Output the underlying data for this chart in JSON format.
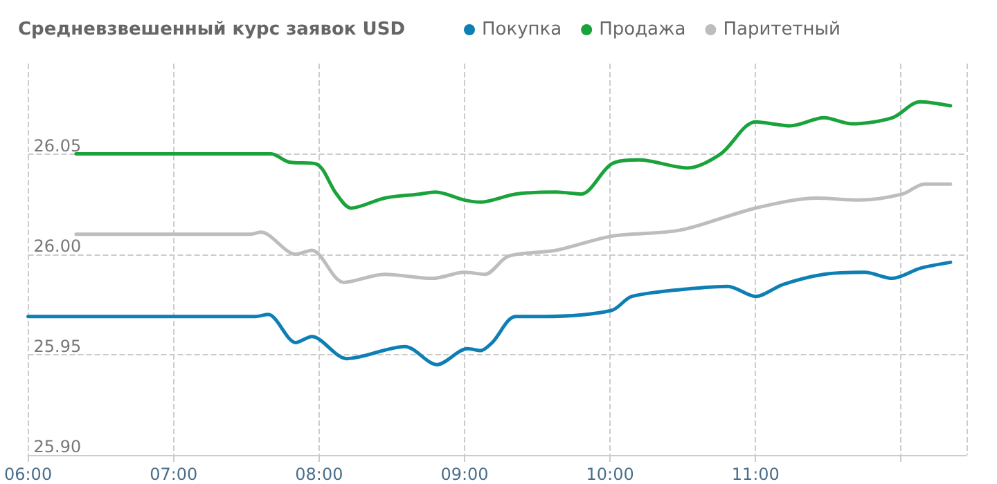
{
  "chart_data": {
    "type": "line",
    "title": "Средневзвешенный курс заявок USD",
    "legend": "top",
    "grid": true,
    "line_style": "solid",
    "marker": "none",
    "xlim": [
      6,
      12.45
    ],
    "xticks": [
      {
        "value": 6,
        "label": "06:00"
      },
      {
        "value": 7,
        "label": "07:00"
      },
      {
        "value": 8,
        "label": "08:00"
      },
      {
        "value": 9,
        "label": "09:00"
      },
      {
        "value": 10,
        "label": "10:00"
      },
      {
        "value": 11,
        "label": "11:00"
      },
      {
        "value": 12,
        "label": null
      }
    ],
    "ylim": [
      25.9,
      26.095
    ],
    "yticks": [
      {
        "value": 25.9,
        "label": "25.90"
      },
      {
        "value": 25.95,
        "label": "25.95"
      },
      {
        "value": 26,
        "label": "26.00"
      },
      {
        "value": 26.05,
        "label": "26.05"
      }
    ],
    "series": [
      {
        "name": "Покупка",
        "color": "#0e7fb5",
        "x": [
          6.0,
          7.56,
          7.65,
          7.84,
          7.95,
          8.19,
          8.59,
          8.81,
          9.02,
          9.11,
          9.19,
          9.35,
          9.54,
          10.01,
          10.15,
          10.58,
          10.81,
          11.0,
          11.19,
          11.47,
          11.75,
          11.94,
          12.13,
          12.34
        ],
        "values": [
          25.969,
          25.969,
          25.97,
          25.956,
          25.959,
          25.948,
          25.954,
          25.945,
          25.953,
          25.952,
          25.956,
          25.969,
          25.969,
          25.972,
          25.979,
          25.983,
          25.984,
          25.979,
          25.985,
          25.99,
          25.991,
          25.988,
          25.993,
          25.996
        ]
      },
      {
        "name": "Продажа",
        "color": "#1aa33a",
        "x": [
          6.33,
          7.67,
          7.79,
          7.98,
          8.12,
          8.22,
          8.45,
          8.69,
          8.8,
          9.0,
          9.11,
          9.35,
          9.63,
          9.8,
          10.01,
          10.2,
          10.53,
          10.76,
          11.0,
          11.24,
          11.47,
          11.66,
          11.94,
          12.13,
          12.34
        ],
        "values": [
          26.05,
          26.05,
          26.046,
          26.045,
          26.03,
          26.023,
          26.028,
          26.03,
          26.031,
          26.027,
          26.026,
          26.03,
          26.031,
          26.03,
          26.045,
          26.047,
          26.043,
          26.05,
          26.066,
          26.064,
          26.068,
          26.065,
          26.068,
          26.076,
          26.074
        ]
      },
      {
        "name": "Паритетный",
        "color": "#bdbdbd",
        "x": [
          6.33,
          7.53,
          7.6,
          7.84,
          7.95,
          8.17,
          8.45,
          8.78,
          9.0,
          9.14,
          9.3,
          9.63,
          10.01,
          10.48,
          11.0,
          11.42,
          11.71,
          12.01,
          12.16,
          12.34
        ],
        "values": [
          26.01,
          26.01,
          26.011,
          26.0,
          26.002,
          25.986,
          25.99,
          25.988,
          25.991,
          25.99,
          25.999,
          26.002,
          26.009,
          26.012,
          26.023,
          26.028,
          26.027,
          26.03,
          26.035,
          26.035
        ]
      }
    ]
  }
}
